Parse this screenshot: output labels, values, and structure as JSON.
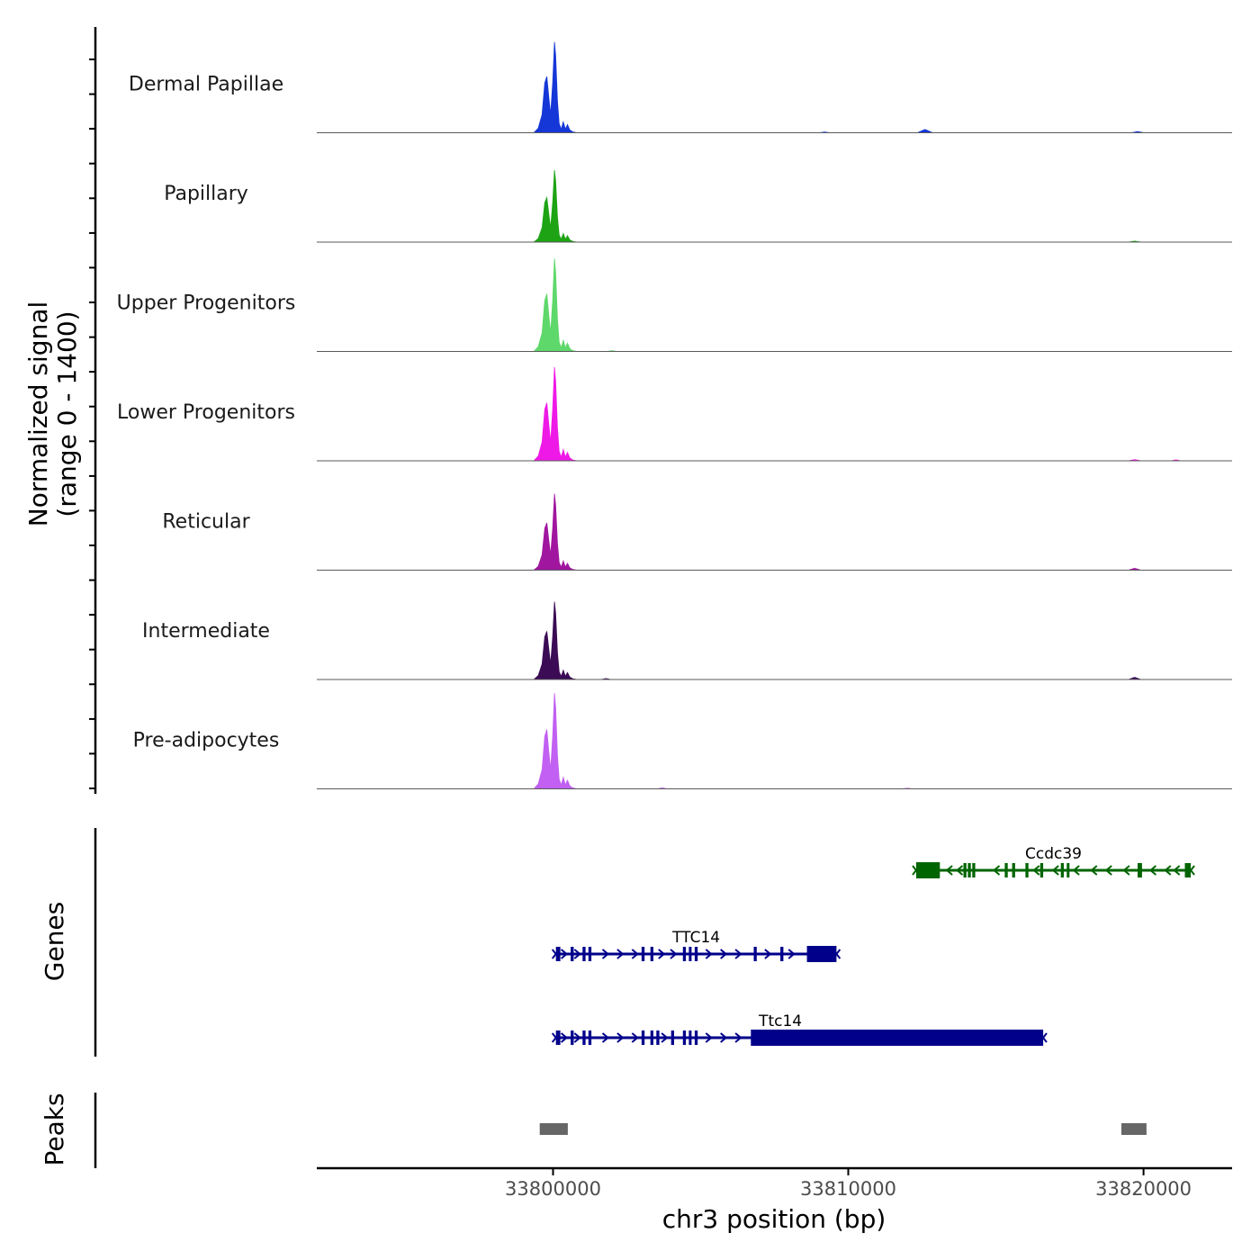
{
  "chart_data": {
    "type": "coverage",
    "y_axis_title_line1": "Normalized signal",
    "y_axis_title_line2": "(range 0 - 1400)",
    "x_axis_title": "chr3 position (bp)",
    "chromosome": "chr3",
    "signal_range": [
      0,
      1400
    ],
    "x_range": [
      33792000,
      33823000
    ],
    "x_ticks": [
      {
        "value": 33800000,
        "label": "33800000"
      },
      {
        "value": 33810000,
        "label": "33810000"
      },
      {
        "value": 33820000,
        "label": "33820000"
      }
    ],
    "peak_shape": [
      {
        "offset": -700,
        "v": 0.0
      },
      {
        "offset": -550,
        "v": 0.05
      },
      {
        "offset": -420,
        "v": 0.2
      },
      {
        "offset": -330,
        "v": 0.55
      },
      {
        "offset": -260,
        "v": 0.62
      },
      {
        "offset": -190,
        "v": 0.38
      },
      {
        "offset": -130,
        "v": 0.2
      },
      {
        "offset": -60,
        "v": 0.55
      },
      {
        "offset": 0,
        "v": 1.0
      },
      {
        "offset": 40,
        "v": 0.85
      },
      {
        "offset": 100,
        "v": 0.35
      },
      {
        "offset": 160,
        "v": 0.1
      },
      {
        "offset": 230,
        "v": 0.04
      },
      {
        "offset": 300,
        "v": 0.12
      },
      {
        "offset": 370,
        "v": 0.04
      },
      {
        "offset": 440,
        "v": 0.09
      },
      {
        "offset": 520,
        "v": 0.03
      },
      {
        "offset": 620,
        "v": 0.01
      },
      {
        "offset": 760,
        "v": 0.0
      }
    ],
    "tracks": [
      {
        "name": "Dermal Papillae",
        "color": "#1537d8",
        "peak_center": 33800050,
        "peak_max": 1260,
        "minor_peaks": [
          {
            "center": 33812600,
            "height": 45,
            "width": 500
          },
          {
            "center": 33809200,
            "height": 10,
            "width": 300
          },
          {
            "center": 33819800,
            "height": 15,
            "width": 400
          }
        ]
      },
      {
        "name": "Papillary",
        "color": "#1ea314",
        "peak_center": 33800050,
        "peak_max": 1000,
        "minor_peaks": [
          {
            "center": 33819700,
            "height": 12,
            "width": 400
          }
        ]
      },
      {
        "name": "Upper Progenitors",
        "color": "#5ed86a",
        "peak_center": 33800050,
        "peak_max": 1290,
        "minor_peaks": [
          {
            "center": 33802000,
            "height": 10,
            "width": 300
          }
        ]
      },
      {
        "name": "Lower Progenitors",
        "color": "#ef19e7",
        "peak_center": 33800050,
        "peak_max": 1300,
        "minor_peaks": [
          {
            "center": 33819700,
            "height": 15,
            "width": 400
          },
          {
            "center": 33821100,
            "height": 12,
            "width": 300
          }
        ]
      },
      {
        "name": "Reticular",
        "color": "#a0169f",
        "peak_center": 33800050,
        "peak_max": 1060,
        "minor_peaks": [
          {
            "center": 33819700,
            "height": 25,
            "width": 400
          }
        ]
      },
      {
        "name": "Intermediate",
        "color": "#3b0b55",
        "peak_center": 33800050,
        "peak_max": 1080,
        "minor_peaks": [
          {
            "center": 33819700,
            "height": 30,
            "width": 400
          },
          {
            "center": 33801800,
            "height": 12,
            "width": 300
          }
        ]
      },
      {
        "name": "Pre-adipocytes",
        "color": "#c160f2",
        "peak_center": 33800050,
        "peak_max": 1330,
        "minor_peaks": [
          {
            "center": 33803700,
            "height": 12,
            "width": 300
          },
          {
            "center": 33812000,
            "height": 8,
            "width": 300
          }
        ]
      }
    ],
    "genes_title": "Genes",
    "genes": [
      {
        "name": "Ccdc39",
        "label": "Ccdc39",
        "color": "#006400",
        "strand": "-",
        "row": 0,
        "start": 33812300,
        "end": 33821600,
        "exons": [
          [
            33812300,
            33813100
          ],
          [
            33813900,
            33814000
          ],
          [
            33814050,
            33814150
          ],
          [
            33814200,
            33814300
          ],
          [
            33815300,
            33815400
          ],
          [
            33815550,
            33815650
          ],
          [
            33816000,
            33816100
          ],
          [
            33816500,
            33816600
          ],
          [
            33817200,
            33817300
          ],
          [
            33817400,
            33817450
          ],
          [
            33819800,
            33819950
          ],
          [
            33821400,
            33821600
          ]
        ],
        "cds": [
          [
            33812300,
            33813100
          ]
        ],
        "arrows": [
          33813400,
          33813750,
          33815000,
          33816350,
          33817000,
          33817700,
          33818300,
          33818800,
          33819400,
          33820300,
          33820800,
          33821100
        ]
      },
      {
        "name": "TTC14",
        "label": "TTC14",
        "color": "#00008b",
        "strand": "+",
        "row": 1,
        "start": 33800100,
        "end": 33809600,
        "exons": [
          [
            33800100,
            33800250
          ],
          [
            33800600,
            33800700
          ],
          [
            33801000,
            33801100
          ],
          [
            33801200,
            33801300
          ],
          [
            33803000,
            33803100
          ],
          [
            33803300,
            33803400
          ],
          [
            33804400,
            33804500
          ],
          [
            33804600,
            33804650
          ],
          [
            33804800,
            33804900
          ],
          [
            33806800,
            33806900
          ],
          [
            33807700,
            33807800
          ]
        ],
        "cds": [
          [
            33808600,
            33809600
          ]
        ],
        "arrows": [
          33800400,
          33800850,
          33801800,
          33802300,
          33802800,
          33803700,
          33804100,
          33805300,
          33805800,
          33806300,
          33807300,
          33808100
        ]
      },
      {
        "name": "Ttc14",
        "label": "Ttc14",
        "color": "#00008b",
        "strand": "+",
        "row": 2,
        "start": 33800100,
        "end": 33816600,
        "exons": [
          [
            33800100,
            33800250
          ],
          [
            33800600,
            33800700
          ],
          [
            33801000,
            33801100
          ],
          [
            33801200,
            33801300
          ],
          [
            33803000,
            33803100
          ],
          [
            33803300,
            33803400
          ],
          [
            33803500,
            33803600
          ],
          [
            33804000,
            33804100
          ],
          [
            33804400,
            33804500
          ],
          [
            33804600,
            33804650
          ],
          [
            33804800,
            33804900
          ]
        ],
        "cds": [
          [
            33806700,
            33816600
          ]
        ],
        "arrows": [
          33800400,
          33800850,
          33801800,
          33802300,
          33802800,
          33803800,
          33805300,
          33805800,
          33806300
        ]
      }
    ],
    "peaks_title": "Peaks",
    "peaks_color": "#666666",
    "peaks": [
      {
        "start": 33799550,
        "end": 33800500
      },
      {
        "start": 33819250,
        "end": 33820100
      }
    ]
  }
}
